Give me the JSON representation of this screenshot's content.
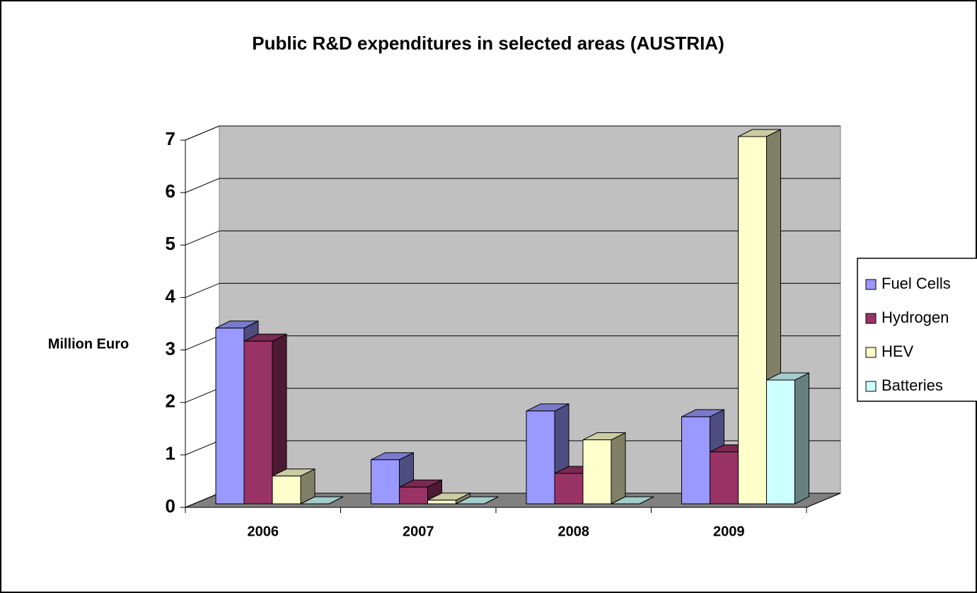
{
  "chart_data": {
    "type": "bar3d",
    "title": "Public R&D expenditures in selected areas (AUSTRIA)",
    "y_label": "Million Euro",
    "categories": [
      "2006",
      "2007",
      "2008",
      "2009"
    ],
    "series": [
      {
        "name": "Fuel Cells",
        "color": "#9999ff",
        "values": [
          3.35,
          0.84,
          1.77,
          1.66
        ]
      },
      {
        "name": "Hydrogen",
        "color": "#993366",
        "values": [
          3.1,
          0.32,
          0.58,
          0.99
        ]
      },
      {
        "name": "HEV",
        "color": "#ffffcc",
        "values": [
          0.53,
          0.07,
          1.22,
          7.0
        ]
      },
      {
        "name": "Batteries",
        "color": "#ccffff",
        "values": [
          0,
          0,
          0,
          2.36
        ]
      }
    ],
    "ylim": [
      0,
      7
    ],
    "yticks": [
      0,
      1,
      2,
      3,
      4,
      5,
      6,
      7
    ],
    "grid": true,
    "legend": "right"
  }
}
